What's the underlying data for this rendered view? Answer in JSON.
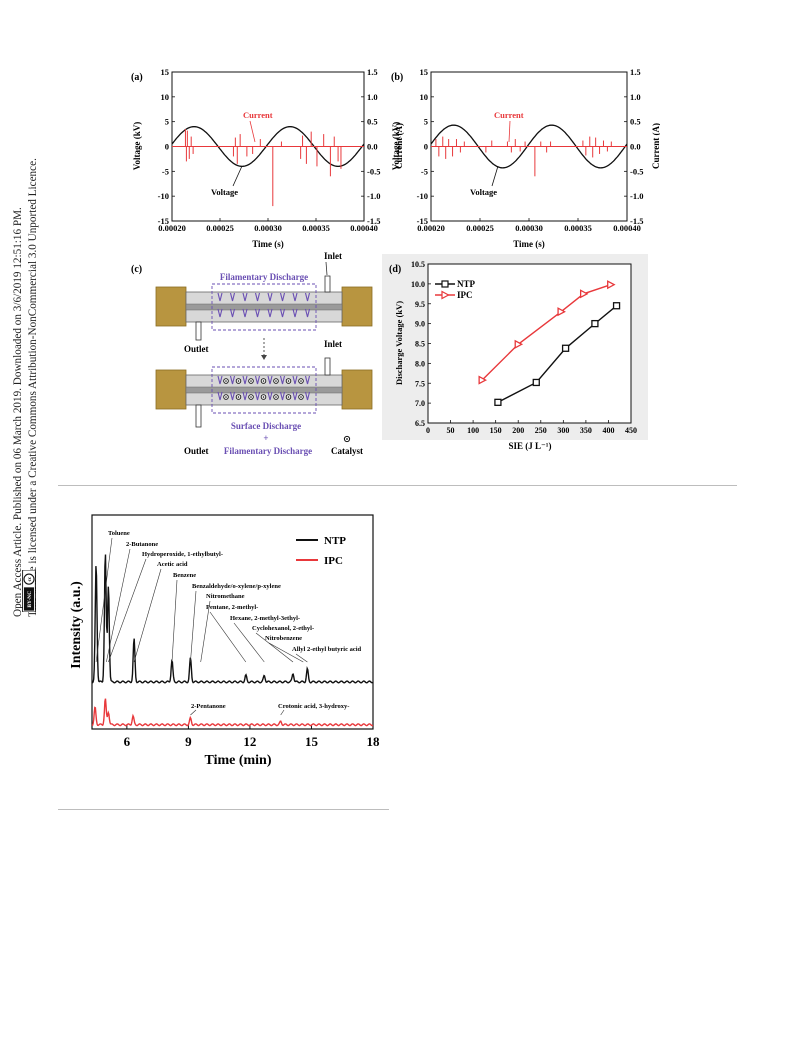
{
  "side_notice": {
    "line1": "Open Access Article. Published on 06 March 2019. Downloaded on 3/6/2019 12:51:16 PM.",
    "line2": "This article is licensed under a Creative Commons Attribution-NonCommercial 3.0 Unported Licence.",
    "badge_cc": "cc",
    "badge_text": "BY-NC"
  },
  "figure1": {
    "panel_a": {
      "label": "(a)",
      "current_label": "Current",
      "voltage_label": "Voltage",
      "xlabel": "Time (s)",
      "ylabel_left": "Voltage (kV)",
      "ylabel_right": "Current (A)",
      "xticks": [
        "0.00020",
        "0.00025",
        "0.00030",
        "0.00035",
        "0.00040"
      ],
      "yticks_left": [
        "15",
        "10",
        "5",
        "0",
        "-5",
        "-10",
        "-15"
      ],
      "yticks_right": [
        "1.5",
        "1.0",
        "0.5",
        "0.0",
        "-0.5",
        "-1.0",
        "-1.5"
      ]
    },
    "panel_b": {
      "label": "(b)",
      "current_label": "Current",
      "voltage_label": "Voltage",
      "xlabel": "Time (s)",
      "ylabel_left": "Voltage (kV)",
      "ylabel_right": "Current (A)",
      "xticks": [
        "0.00020",
        "0.00025",
        "0.00030",
        "0.00035",
        "0.00040"
      ],
      "yticks_left": [
        "15",
        "10",
        "5",
        "0",
        "-5",
        "-10",
        "-15"
      ],
      "yticks_right": [
        "1.5",
        "1.0",
        "0.5",
        "0.0",
        "-0.5",
        "-1.0",
        "-1.5"
      ]
    },
    "panel_c": {
      "label": "(c)",
      "filamentary": "Filamentary Discharge",
      "inlet_top": "Inlet",
      "inlet_bottom": "Inlet",
      "outlet_top": "Outlet",
      "outlet_bottom": "Outlet",
      "surface": "Surface Discharge",
      "plus": "+",
      "filamentary2": "Filamentary Discharge",
      "catalyst": "Catalyst"
    },
    "panel_d": {
      "label": "(d)",
      "xlabel": "SIE (J L⁻¹)",
      "ylabel": "Discharge Voltage (kV)",
      "xticks": [
        "0",
        "50",
        "100",
        "150",
        "200",
        "250",
        "300",
        "350",
        "400",
        "450"
      ],
      "yticks": [
        "10.5",
        "10.0",
        "9.5",
        "9.0",
        "8.5",
        "8.0",
        "7.5",
        "7.0",
        "6.5"
      ]
    }
  },
  "figure2": {
    "ylabel": "Intensity (a.u.)",
    "xlabel": "Time (min)",
    "xticks": [
      "6",
      "9",
      "12",
      "15",
      "18"
    ],
    "peaks": [
      "Toluene",
      "2-Butanone",
      "Hydroperoxide, 1-ethylbutyl-",
      "Acetic acid",
      "Benzene",
      "Benzaldehyde/o-xylene/p-xylene",
      "Nitromethane",
      "Pentane, 2-methyl-",
      "Hexane, 2-methyl-3ethyl-",
      "Cyclohexanol, 2-ethyl-",
      "Nitrobenzene",
      "Allyl 2-ethyl butyric acid"
    ],
    "ipc_peaks": [
      "2-Pentanone",
      "Crotonic acid, 3-hydroxy-"
    ]
  },
  "chart_data": [
    {
      "type": "line",
      "panel": "(a)",
      "xlabel": "Time (s)",
      "ylabel": "Voltage (kV)",
      "y2label": "Current (A)",
      "xlim": [
        0.0002,
        0.0004
      ],
      "ylim": [
        -15,
        15
      ],
      "y2lim": [
        -1.5,
        1.5
      ],
      "series": [
        {
          "name": "Voltage",
          "color": "#111111",
          "amplitude": 4.0,
          "period": 0.0001,
          "value_at_x0": 0.5
        },
        {
          "name": "Current",
          "color": "#e8383b",
          "spikes": [
            [
              0.000214,
              0.35
            ],
            [
              0.000215,
              -0.3
            ],
            [
              0.000216,
              0.32
            ],
            [
              0.000218,
              -0.25
            ],
            [
              0.00022,
              0.2
            ],
            [
              0.000222,
              -0.15
            ],
            [
              0.000264,
              -0.2
            ],
            [
              0.000266,
              0.18
            ],
            [
              0.000268,
              -0.35
            ],
            [
              0.000271,
              0.25
            ],
            [
              0.000278,
              -0.2
            ],
            [
              0.000284,
              -0.15
            ],
            [
              0.000292,
              0.15
            ],
            [
              0.000305,
              -1.2
            ],
            [
              0.000314,
              0.1
            ],
            [
              0.000334,
              -0.25
            ],
            [
              0.000336,
              0.22
            ],
            [
              0.00034,
              -0.35
            ],
            [
              0.000345,
              0.3
            ],
            [
              0.000351,
              -0.4
            ],
            [
              0.000358,
              0.25
            ],
            [
              0.000365,
              -0.6
            ],
            [
              0.000369,
              0.2
            ],
            [
              0.000373,
              -0.3
            ],
            [
              0.000376,
              -0.45
            ]
          ]
        }
      ]
    },
    {
      "type": "line",
      "panel": "(b)",
      "xlabel": "Time (s)",
      "ylabel": "Voltage (kV)",
      "y2label": "Current (A)",
      "xlim": [
        0.0002,
        0.0004
      ],
      "ylim": [
        -15,
        15
      ],
      "y2lim": [
        -1.5,
        1.5
      ],
      "series": [
        {
          "name": "Voltage",
          "color": "#111111",
          "amplitude": 4.3,
          "period": 0.0001,
          "value_at_x0": 0.5
        },
        {
          "name": "Current",
          "color": "#e8383b",
          "spikes": [
            [
              0.000205,
              0.15
            ],
            [
              0.000208,
              -0.2
            ],
            [
              0.000212,
              0.2
            ],
            [
              0.000215,
              -0.25
            ],
            [
              0.000218,
              0.15
            ],
            [
              0.000222,
              -0.2
            ],
            [
              0.000226,
              0.15
            ],
            [
              0.00023,
              -0.12
            ],
            [
              0.000234,
              0.1
            ],
            [
              0.000256,
              -0.12
            ],
            [
              0.000262,
              0.12
            ],
            [
              0.000278,
              0.1
            ],
            [
              0.000282,
              -0.12
            ],
            [
              0.000286,
              0.15
            ],
            [
              0.000291,
              -0.1
            ],
            [
              0.000296,
              0.1
            ],
            [
              0.000306,
              -0.6
            ],
            [
              0.000312,
              0.1
            ],
            [
              0.000318,
              -0.12
            ],
            [
              0.000322,
              0.1
            ],
            [
              0.000355,
              0.12
            ],
            [
              0.000358,
              -0.18
            ],
            [
              0.000362,
              0.2
            ],
            [
              0.000365,
              -0.22
            ],
            [
              0.000368,
              0.18
            ],
            [
              0.000372,
              -0.15
            ],
            [
              0.000376,
              0.12
            ],
            [
              0.00038,
              -0.1
            ],
            [
              0.000384,
              0.1
            ]
          ]
        }
      ]
    },
    {
      "type": "line",
      "panel": "(d)",
      "xlabel": "SIE (J L⁻¹)",
      "ylabel": "Discharge Voltage (kV)",
      "xlim": [
        0,
        450
      ],
      "ylim": [
        6.5,
        10.5
      ],
      "legend": "top-left",
      "series": [
        {
          "name": "NTP",
          "color": "#111111",
          "marker": "square",
          "x": [
            155,
            240,
            305,
            370,
            418
          ],
          "y": [
            7.02,
            7.52,
            8.38,
            9.0,
            9.45
          ]
        },
        {
          "name": "IPC",
          "color": "#e8383b",
          "marker": "triangle-right",
          "x": [
            120,
            200,
            295,
            345,
            405
          ],
          "y": [
            7.58,
            8.48,
            9.3,
            9.75,
            9.98
          ]
        }
      ]
    },
    {
      "type": "line",
      "panel": "GC-MS",
      "xlabel": "Time (min)",
      "ylabel": "Intensity (a.u.)",
      "xlim": [
        4.3,
        18
      ],
      "legend": "top-right",
      "series": [
        {
          "name": "NTP",
          "color": "#111111",
          "baseline": 0.22,
          "peaks": [
            [
              4.5,
              0.55
            ],
            [
              4.95,
              0.6
            ],
            [
              5.1,
              0.45
            ],
            [
              6.35,
              0.2
            ],
            [
              8.2,
              0.1
            ],
            [
              9.1,
              0.11
            ],
            [
              11.8,
              0.03
            ],
            [
              12.7,
              0.03
            ],
            [
              14.1,
              0.04
            ],
            [
              14.8,
              0.06
            ]
          ]
        },
        {
          "name": "IPC",
          "color": "#e8383b",
          "baseline": 0.02,
          "peaks": [
            [
              4.45,
              0.08
            ],
            [
              4.95,
              0.12
            ],
            [
              5.1,
              0.06
            ],
            [
              6.3,
              0.04
            ],
            [
              9.1,
              0.03
            ],
            [
              13.5,
              0.015
            ]
          ]
        }
      ]
    }
  ]
}
